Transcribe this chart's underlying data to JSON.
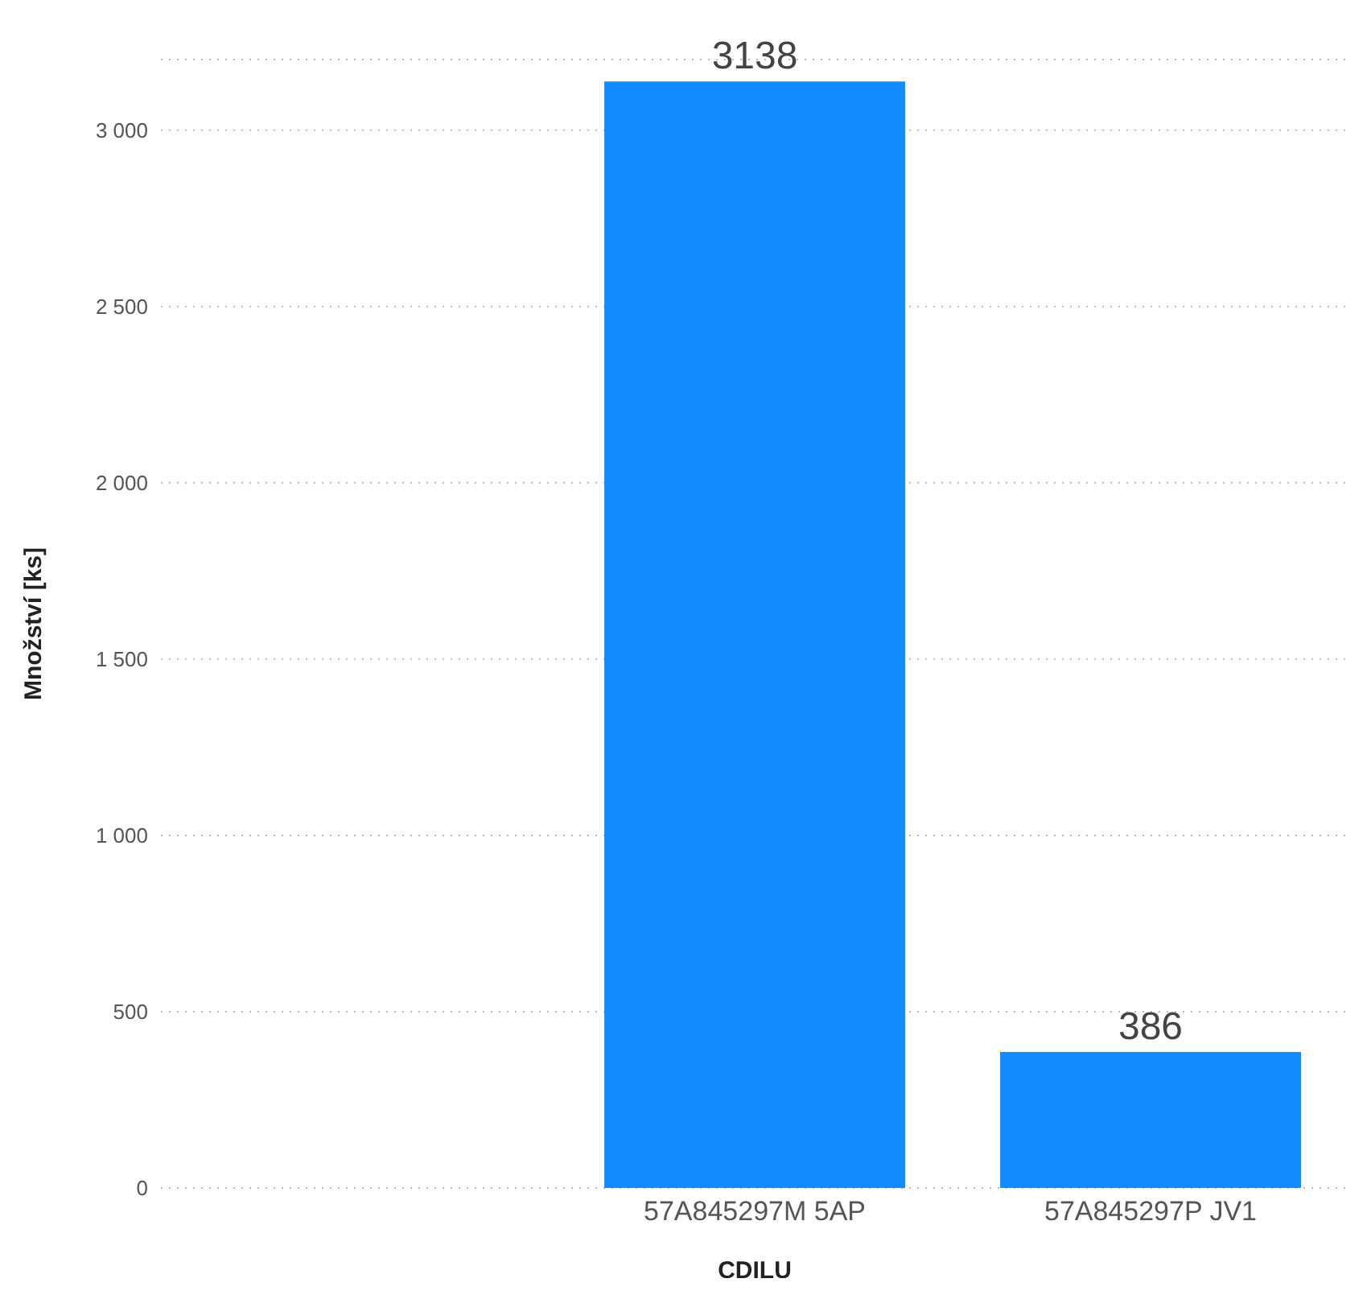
{
  "chart_data": {
    "type": "bar",
    "xlabel": "CDILU",
    "ylabel": "Množství [ks]",
    "categories": [
      null,
      "57A845297M 5AP",
      "57A845297P JV1"
    ],
    "values": [
      null,
      3138,
      386
    ],
    "color": "#118dff",
    "ylim": [
      0,
      3200
    ],
    "yticks": [
      {
        "value": 0,
        "label": "0"
      },
      {
        "value": 500,
        "label": "500"
      },
      {
        "value": 1000,
        "label": "1 000"
      },
      {
        "value": 1500,
        "label": "1 500"
      },
      {
        "value": 2000,
        "label": "2 000"
      },
      {
        "value": 2500,
        "label": "2 500"
      },
      {
        "value": 3000,
        "label": "3 000"
      }
    ],
    "grid": "y",
    "data_labels": true,
    "legend": false
  }
}
